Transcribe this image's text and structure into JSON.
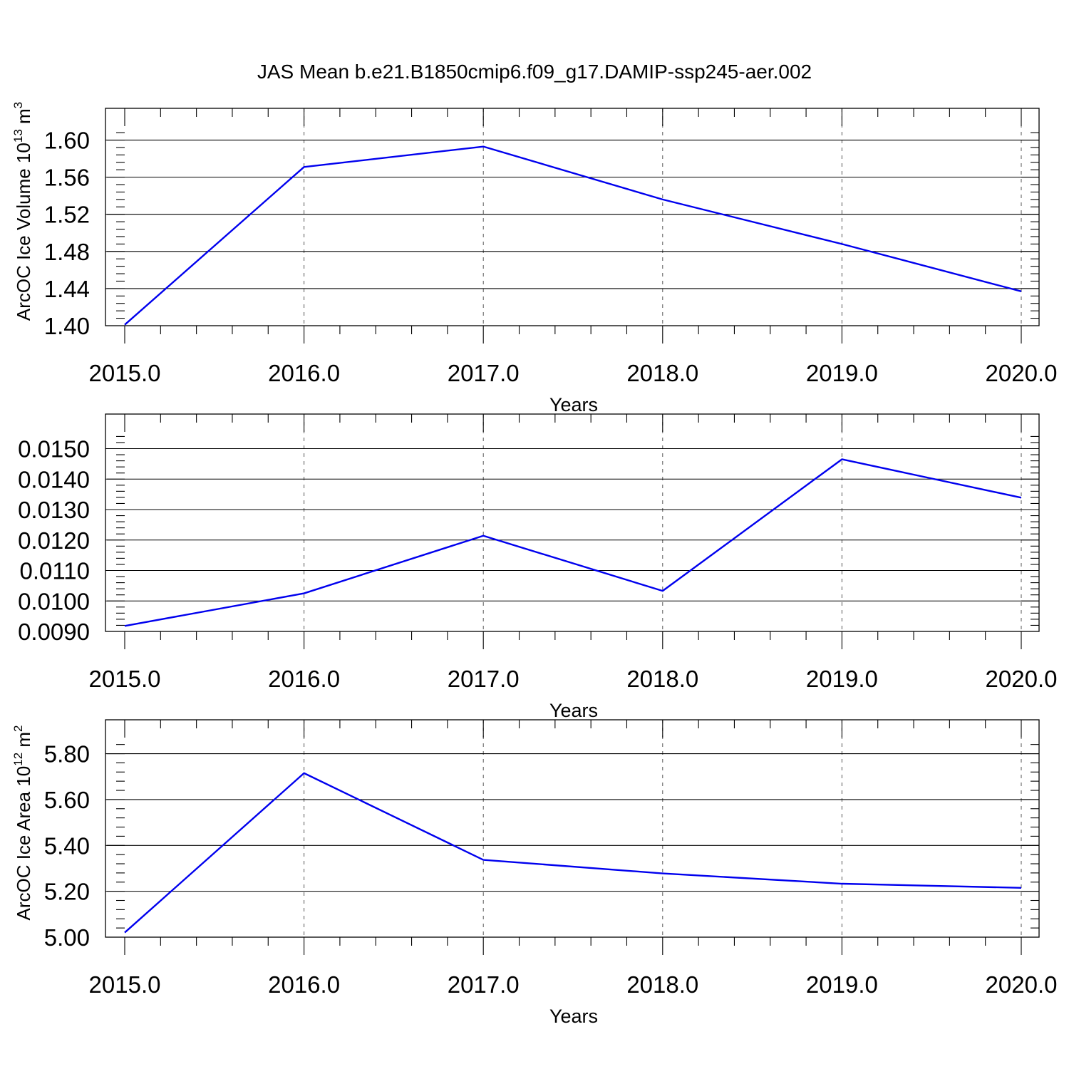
{
  "title": "JAS Mean b.e21.B1850cmip6.f09_g17.DAMIP-ssp245-aer.002",
  "chart_data": [
    {
      "type": "line",
      "xlabel": "Years",
      "ylabel_parts": [
        "ArcOC Ice Volume 10",
        "13",
        " m",
        "3"
      ],
      "x": [
        2015,
        2016,
        2017,
        2018,
        2019,
        2020
      ],
      "x_tick_labels": [
        "2015.0",
        "2016.0",
        "2017.0",
        "2018.0",
        "2019.0",
        "2020.0"
      ],
      "y_tick_values": [
        1.4,
        1.44,
        1.48,
        1.52,
        1.56,
        1.6
      ],
      "y_tick_labels": [
        "1.40",
        "1.44",
        "1.48",
        "1.52",
        "1.56",
        "1.60"
      ],
      "ylim": [
        1.4,
        1.615
      ],
      "series": [
        {
          "values": [
            1.401,
            1.571,
            1.593,
            1.536,
            1.488,
            1.437
          ],
          "color": "#0000ee"
        }
      ],
      "grid": "vertical dashed at major x ticks"
    },
    {
      "type": "line",
      "xlabel": "Years",
      "ylabel_parts": [],
      "x": [
        2015,
        2016,
        2017,
        2018,
        2019,
        2020
      ],
      "x_tick_labels": [
        "2015.0",
        "2016.0",
        "2017.0",
        "2018.0",
        "2019.0",
        "2020.0"
      ],
      "y_tick_values": [
        0.009,
        0.01,
        0.011,
        0.012,
        0.013,
        0.014,
        0.015
      ],
      "y_tick_labels": [
        "0.0090",
        "0.0100",
        "0.0110",
        "0.0120",
        "0.0130",
        "0.0140",
        "0.0150"
      ],
      "ylim": [
        0.009,
        0.01555
      ],
      "series": [
        {
          "values": [
            0.00918,
            0.01025,
            0.01214,
            0.01033,
            0.01465,
            0.01339
          ],
          "color": "#0000ee"
        }
      ],
      "grid": "vertical dashed at major x ticks"
    },
    {
      "type": "line",
      "xlabel": "Years",
      "ylabel_parts": [
        "ArcOC Ice Area 10",
        "12",
        " m",
        "2"
      ],
      "x": [
        2015,
        2016,
        2017,
        2018,
        2019,
        2020
      ],
      "x_tick_labels": [
        "2015.0",
        "2016.0",
        "2017.0",
        "2018.0",
        "2019.0",
        "2020.0"
      ],
      "y_tick_values": [
        5.0,
        5.2,
        5.4,
        5.6,
        5.8
      ],
      "y_tick_labels": [
        "5.00",
        "5.20",
        "5.40",
        "5.60",
        "5.80"
      ],
      "ylim": [
        5.0,
        5.87
      ],
      "series": [
        {
          "values": [
            5.02,
            5.715,
            5.337,
            5.278,
            5.233,
            5.215
          ],
          "color": "#0000ee"
        }
      ],
      "grid": "vertical dashed at major x ticks"
    }
  ]
}
